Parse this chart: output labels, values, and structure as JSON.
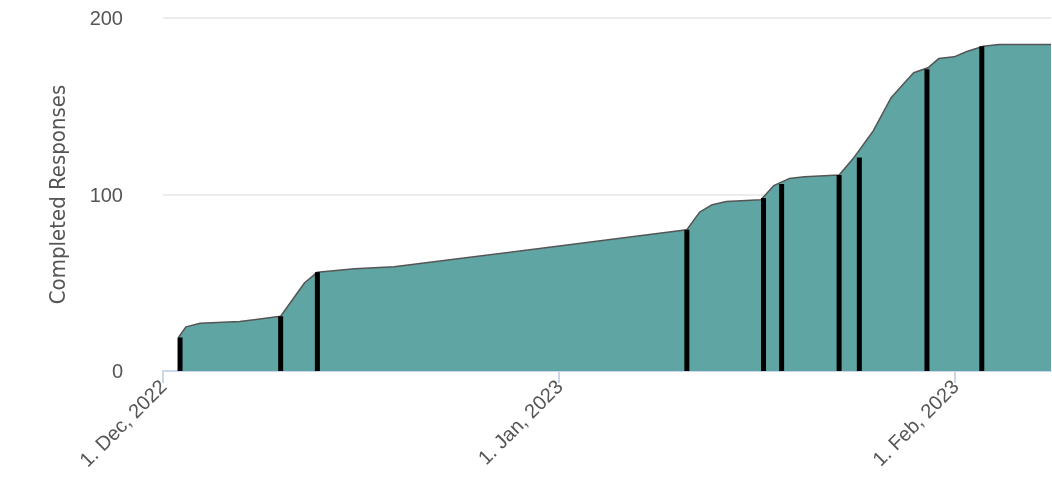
{
  "chart_data": {
    "type": "area",
    "ylabel": "Completed Responses",
    "xlim": [
      "2022-12-01",
      "2023-02-08T12:00"
    ],
    "xticks": [
      {
        "value": "2022-12-01",
        "label": "1. Dec, 2022"
      },
      {
        "value": "2023-01-01",
        "label": "1. Jan, 2023"
      },
      {
        "value": "2023-02-01",
        "label": "1. Feb, 2023"
      }
    ],
    "ylim": [
      0,
      200
    ],
    "yticks": [
      0,
      100,
      200
    ],
    "grid": "y",
    "marker": "none",
    "series": [
      {
        "color": "#5fa5a3",
        "x": [
          "2022-12-02T05:00",
          "2022-12-02T19:00",
          "2022-12-03T22:00",
          "2022-12-07",
          "2022-12-10T05:00",
          "2022-12-12T02:00",
          "2022-12-13T02:00",
          "2022-12-16",
          "2022-12-19T02:00",
          "2023-01-11",
          "2023-01-12",
          "2023-01-12T22:00",
          "2023-01-14T02:00",
          "2023-01-16T19:00",
          "2023-01-17T19:00",
          "2023-01-19",
          "2023-01-20T05:00",
          "2023-01-22T22:00",
          "2023-01-24T02:00",
          "2023-01-25T14:00",
          "2023-01-27",
          "2023-01-28",
          "2023-01-28T18:00",
          "2023-01-29T22:00",
          "2023-01-30T17:00",
          "2023-01-31T22:00",
          "2023-02-01T22:00",
          "2023-02-03T05:00",
          "2023-02-04T10:00",
          "2023-02-08T12:00"
        ],
        "values": [
          19,
          25,
          27,
          28,
          31,
          50,
          56,
          58,
          59,
          80,
          90,
          94,
          96,
          97,
          105,
          109,
          110,
          111,
          121,
          136,
          155,
          163,
          169,
          172,
          177,
          178,
          181,
          184,
          185,
          185
        ]
      },
      {
        "type": "bar",
        "color": "#000000",
        "x": [
          "2022-12-02T08:00",
          "2022-12-10T05:00",
          "2022-12-13T02:00",
          "2023-01-11",
          "2023-01-17",
          "2023-01-18T10:00",
          "2023-01-22T22:00",
          "2023-01-24T12:00",
          "2023-01-29T19:00",
          "2023-02-03T02:00"
        ],
        "values": [
          19,
          31,
          56,
          80,
          98,
          106,
          111,
          121,
          171,
          184
        ]
      }
    ]
  }
}
